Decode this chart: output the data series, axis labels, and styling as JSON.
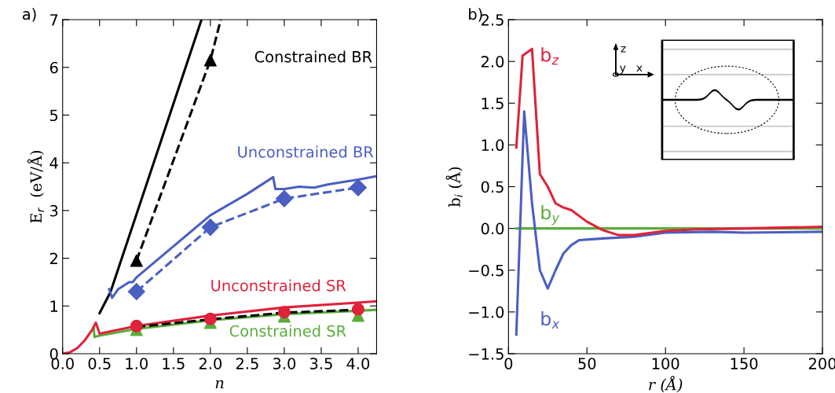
{
  "chart_data": [
    {
      "type": "line",
      "title": "a)",
      "xlabel": "n",
      "ylabel": "E$_{r}$  (eV/Å)",
      "grid": false,
      "legend": false,
      "xlim": [
        0,
        4.25
      ],
      "ylim": [
        0,
        7
      ],
      "xticks": [
        {
          "value": 0,
          "label": "0.0"
        },
        0.5,
        {
          "value": 1,
          "label": "1.0"
        },
        1.5,
        {
          "value": 2,
          "label": "2.0"
        },
        2.5,
        {
          "value": 3,
          "label": "3.0"
        },
        3.5,
        {
          "value": 4,
          "label": "4.0"
        }
      ],
      "yticks": [
        0,
        1,
        2,
        3,
        4,
        5,
        6,
        7
      ],
      "series": [
        {
          "name": "Constrained BR",
          "color": "#000000",
          "line_style": "solid",
          "marker": "none",
          "x": [
            0.5,
            0.6,
            0.65,
            1.88
          ],
          "values": [
            0.85,
            1.15,
            1.3,
            7.0
          ]
        },
        {
          "color": "#000000",
          "line_style": "dashed",
          "marker": "none",
          "x": [
            1,
            2,
            2.14
          ],
          "values": [
            1.95,
            6.15,
            7.0
          ]
        },
        {
          "type": "scatter",
          "color": "#000000",
          "marker": "triangle",
          "x": [
            1,
            2
          ],
          "values": [
            1.95,
            6.15
          ]
        },
        {
          "name": "Unconstrained BR",
          "color": "#4a5fc1",
          "line_style": "solid",
          "marker": "none",
          "x": [
            0.63,
            0.67,
            0.75,
            0.9,
            0.95,
            1.0,
            1.5,
            2.0,
            2.5,
            2.85,
            2.88,
            3.0,
            3.2,
            3.4,
            3.6,
            4.0,
            4.25
          ],
          "values": [
            1.35,
            1.17,
            1.35,
            1.5,
            1.5,
            1.6,
            2.25,
            2.9,
            3.35,
            3.7,
            3.45,
            3.45,
            3.5,
            3.48,
            3.55,
            3.65,
            3.72
          ]
        },
        {
          "color": "#4a5fc1",
          "line_style": "dashed",
          "marker": "none",
          "x": [
            1,
            2,
            3,
            4
          ],
          "values": [
            1.3,
            2.65,
            3.25,
            3.48
          ]
        },
        {
          "type": "scatter",
          "color": "#4a5fc1",
          "marker": "diamond",
          "x": [
            1,
            2,
            3,
            4
          ],
          "values": [
            1.3,
            2.65,
            3.25,
            3.48
          ]
        },
        {
          "name": "Constrained SR",
          "color": "#5aad3a",
          "line_style": "solid",
          "marker": "none",
          "x": [
            0.42,
            0.43,
            0.5,
            1,
            2,
            3,
            4,
            4.25
          ],
          "values": [
            0.55,
            0.35,
            0.38,
            0.52,
            0.7,
            0.83,
            0.9,
            0.92
          ]
        },
        {
          "name": "Unconstrained SR",
          "color": "#e0223a",
          "line_style": "solid",
          "marker": "none",
          "x": [
            0,
            0.1,
            0.2,
            0.3,
            0.4,
            0.45,
            0.5,
            1.0,
            2,
            3,
            4,
            4.25
          ],
          "values": [
            0,
            0.03,
            0.12,
            0.28,
            0.5,
            0.65,
            0.42,
            0.58,
            0.8,
            0.97,
            1.07,
            1.1
          ]
        },
        {
          "color": "#000000",
          "line_style": "dashed",
          "marker": "none",
          "x": [
            1,
            2,
            3,
            4
          ],
          "values": [
            0.56,
            0.72,
            0.86,
            0.92
          ]
        },
        {
          "type": "scatter",
          "color": "#5aad3a",
          "marker": "triangle",
          "x": [
            1,
            2,
            3,
            4
          ],
          "values": [
            0.5,
            0.65,
            0.78,
            0.8
          ]
        },
        {
          "type": "scatter",
          "color": "#e0223a",
          "marker": "circle",
          "x": [
            1,
            2,
            3,
            4
          ],
          "values": [
            0.58,
            0.73,
            0.87,
            0.93
          ]
        }
      ]
    },
    {
      "type": "line",
      "title": "b)",
      "xlabel": "r (Å)",
      "ylabel": "b$_{i}$ (Å)",
      "grid": false,
      "legend": false,
      "xlim": [
        0,
        200
      ],
      "ylim": [
        -1.5,
        2.5
      ],
      "xticks": [
        0,
        50,
        100,
        150,
        200
      ],
      "yticks": [
        {
          "value": -1.5,
          "label": "−1.5"
        },
        {
          "value": -1,
          "label": "−1.0"
        },
        {
          "value": -0.5,
          "label": "−0.5"
        },
        {
          "value": 0,
          "label": "0.0"
        },
        0.5,
        {
          "value": 1,
          "label": "1.0"
        },
        1.5,
        {
          "value": 2,
          "label": "2.0"
        },
        2.5
      ],
      "series": [
        {
          "name": "b$_{y}$",
          "color": "#5aad3a",
          "line_style": "solid",
          "marker": "none",
          "x": [
            5,
            200
          ],
          "values": [
            0,
            0
          ]
        },
        {
          "name": "b$_{x}$",
          "color": "#4a5fc1",
          "line_style": "solid",
          "marker": "none",
          "x": [
            5,
            10,
            15,
            20,
            25,
            30,
            35,
            40,
            45,
            60,
            80,
            100,
            130,
            150,
            200
          ],
          "values": [
            -1.27,
            1.4,
            0.3,
            -0.5,
            -0.72,
            -0.5,
            -0.3,
            -0.2,
            -0.14,
            -0.12,
            -0.1,
            -0.05,
            -0.04,
            -0.05,
            -0.04
          ]
        },
        {
          "name": "b$_{z}$",
          "color": "#e0223a",
          "line_style": "solid",
          "marker": "none",
          "x": [
            5,
            9,
            15,
            20,
            25,
            30,
            35,
            40,
            50,
            60,
            70,
            80,
            100,
            120,
            150,
            200
          ],
          "values": [
            0.97,
            2.07,
            2.15,
            0.65,
            0.5,
            0.3,
            0.25,
            0.22,
            0.08,
            -0.02,
            -0.08,
            -0.08,
            -0.03,
            -0.01,
            0.0,
            0.02
          ]
        }
      ],
      "annotations": [
        "z",
        "y",
        "x"
      ]
    }
  ]
}
